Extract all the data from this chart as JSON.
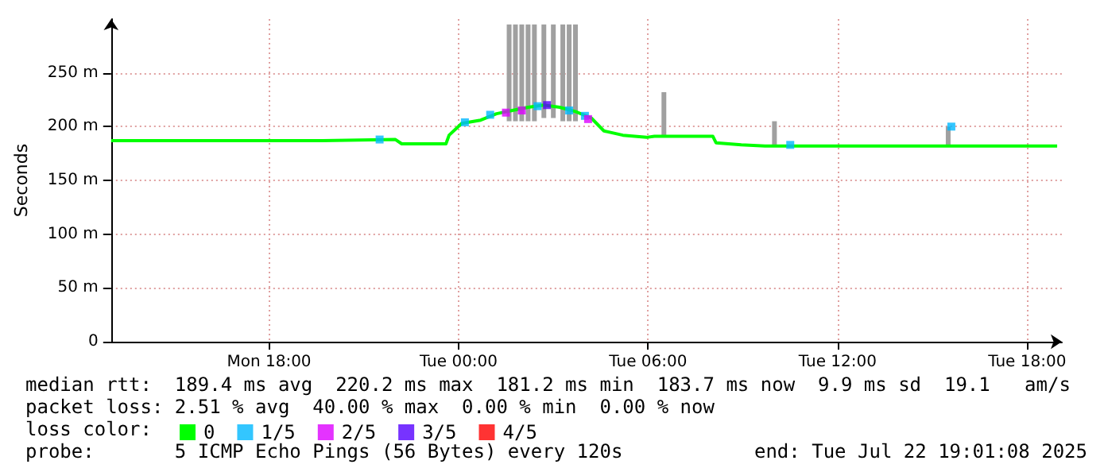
{
  "chart_data": {
    "type": "line",
    "ylabel": "Seconds",
    "xlim": [
      "2025-07-21T13:00",
      "2025-07-22T19:06"
    ],
    "xticks": [
      {
        "value": "2025-07-21T18:00",
        "label": "Mon 18:00"
      },
      {
        "value": "2025-07-22T00:00",
        "label": "Tue 00:00"
      },
      {
        "value": "2025-07-22T06:00",
        "label": "Tue 06:00"
      },
      {
        "value": "2025-07-22T12:00",
        "label": "Tue 12:00"
      },
      {
        "value": "2025-07-22T18:00",
        "label": "Tue 18:00"
      }
    ],
    "ylim": [
      0,
      300
    ],
    "yticks": [
      0,
      {
        "value": 50,
        "label": "50 m"
      },
      {
        "value": 100,
        "label": "100 m"
      },
      {
        "value": 150,
        "label": "150 m"
      },
      {
        "value": 200,
        "label": "200 m"
      },
      {
        "value": 250,
        "label": "250 m"
      }
    ],
    "grid": true,
    "legend": "bottom left",
    "legend_title": "loss color:",
    "series": [
      {
        "type": "bar",
        "color": "#a0a0a0",
        "x": [
          "2025-07-22T01:36",
          "2025-07-22T01:48",
          "2025-07-22T02:00",
          "2025-07-22T02:12",
          "2025-07-22T02:24",
          "2025-07-22T02:42",
          "2025-07-22T03:00",
          "2025-07-22T03:18",
          "2025-07-22T03:30",
          "2025-07-22T03:42",
          "2025-07-22T06:30",
          "2025-07-22T10:00",
          "2025-07-22T15:30"
        ],
        "base": [
          205,
          205,
          205,
          205,
          205,
          208,
          208,
          205,
          205,
          205,
          190,
          183,
          182
        ],
        "values": [
          90,
          90,
          90,
          90,
          90,
          87,
          87,
          90,
          90,
          90,
          42,
          22,
          18
        ]
      },
      {
        "name": "0",
        "color": "#00ff00",
        "marker": "none",
        "x": [
          "2025-07-21T13:00",
          "2025-07-21T14:42",
          "2025-07-21T17:12",
          "2025-07-21T19:42",
          "2025-07-21T22:00",
          "2025-07-21T22:12",
          "2025-07-21T23:36",
          "2025-07-21T23:42",
          "2025-07-22T00:06",
          "2025-07-22T00:42",
          "2025-07-22T01:12",
          "2025-07-22T01:42",
          "2025-07-22T02:12",
          "2025-07-22T02:42",
          "2025-07-22T03:12",
          "2025-07-22T03:42",
          "2025-07-22T04:12",
          "2025-07-22T04:36",
          "2025-07-22T05:12",
          "2025-07-22T05:57",
          "2025-07-22T06:12",
          "2025-07-22T08:03",
          "2025-07-22T08:09",
          "2025-07-22T08:57",
          "2025-07-22T09:42",
          "2025-07-22T15:42",
          "2025-07-22T18:57"
        ],
        "values": [
          187,
          187,
          187,
          187,
          188,
          184,
          184,
          192,
          203,
          206,
          212,
          215,
          218,
          220,
          218,
          214,
          208,
          196,
          192,
          190,
          191,
          191,
          185,
          183,
          182,
          182,
          182
        ]
      },
      {
        "name": "1/5",
        "type": "scatter",
        "color": "#00b8ff",
        "marker": "square",
        "x": [
          "2025-07-21T21:30",
          "2025-07-22T00:12",
          "2025-07-22T01:00",
          "2025-07-22T02:30",
          "2025-07-22T03:30",
          "2025-07-22T04:00",
          "2025-07-22T10:30",
          "2025-07-22T15:36"
        ],
        "values": [
          188,
          204,
          211,
          219,
          215,
          210,
          183,
          200
        ]
      },
      {
        "name": "2/5",
        "type": "scatter",
        "color": "#dd00ff",
        "marker": "square",
        "x": [
          "2025-07-22T01:30",
          "2025-07-22T02:00",
          "2025-07-22T04:06"
        ],
        "values": [
          213,
          215,
          207
        ]
      },
      {
        "name": "3/5",
        "type": "scatter",
        "color": "#5500ff",
        "marker": "square",
        "x": [
          "2025-07-22T02:48"
        ],
        "values": [
          220
        ]
      },
      {
        "name": "4/5",
        "type": "scatter",
        "color": "#ff0000",
        "marker": "square"
      }
    ],
    "annotations": [
      "median rtt:  189.4 ms avg  220.2 ms max  181.2 ms min  183.7 ms now  9.9 ms sd  19.1   am/s",
      "packet loss: 2.51 % avg  40.00 % max  0.00 % min  0.00 % now",
      "probe:       5 ICMP Echo Pings (56 Bytes) every 120s",
      "end: Tue Jul 22 19:01:08 2025"
    ]
  }
}
